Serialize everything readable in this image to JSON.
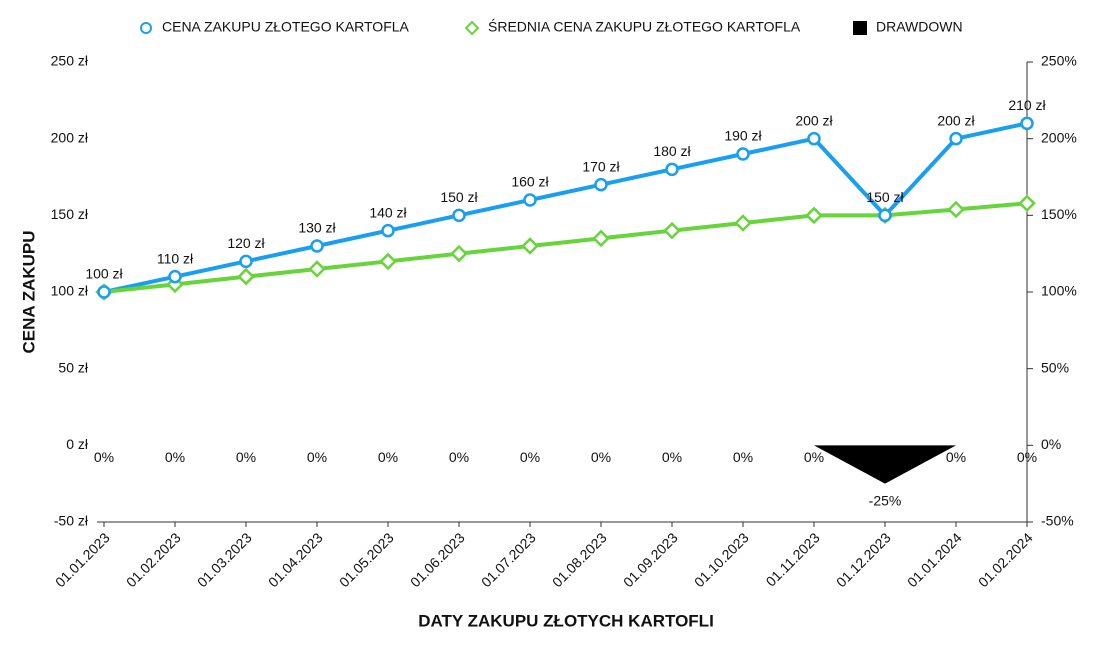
{
  "chart_data": {
    "type": "line",
    "x_label": "DATY ZAKUPU ZŁOTYCH KARTOFLI",
    "y_label": "CENA ZAKUPU",
    "categories": [
      "01.01.2023",
      "01.02.2023",
      "01.03.2023",
      "01.04.2023",
      "01.05.2023",
      "01.06.2023",
      "01.07.2023",
      "01.08.2023",
      "01.09.2023",
      "01.10.2023",
      "01.11.2023",
      "01.12.2023",
      "01.01.2024",
      "01.02.2024"
    ],
    "series": [
      {
        "name": "CENA ZAKUPU ZŁOTEGO KARTOFLA",
        "color": "#1a9ff0",
        "marker": "circle",
        "values": [
          100,
          110,
          120,
          130,
          140,
          150,
          160,
          170,
          180,
          190,
          200,
          150,
          200,
          210
        ],
        "value_labels": [
          "100 zł",
          "110 zł",
          "120 zł",
          "130 zł",
          "140 zł",
          "150 zł",
          "160 zł",
          "170 zł",
          "180 zł",
          "190 zł",
          "200 zł",
          "150 zł",
          "200 zł",
          "210 zł"
        ]
      },
      {
        "name": "ŚREDNIA CENA ZAKUPU ZŁOTEGO KARTOFLA",
        "color": "#66d43a",
        "marker": "diamond",
        "values": [
          100,
          105,
          110,
          115,
          120,
          125,
          130,
          135,
          140,
          145,
          150,
          150,
          153.8,
          157.9
        ]
      },
      {
        "name": "DRAWDOWN",
        "color": "#000000",
        "marker": "area",
        "axis": "y2",
        "values": [
          0,
          0,
          0,
          0,
          0,
          0,
          0,
          0,
          0,
          0,
          0,
          -25,
          0,
          0
        ],
        "value_labels": [
          "0%",
          "0%",
          "0%",
          "0%",
          "0%",
          "0%",
          "0%",
          "0%",
          "0%",
          "0%",
          "0%",
          "-25%",
          "0%",
          "0%"
        ]
      }
    ],
    "ylim": [
      -50,
      250
    ],
    "yticks": [
      {
        "value": -50,
        "label": "-50 zł"
      },
      {
        "value": 0,
        "label": "0 zł"
      },
      {
        "value": 50,
        "label": "50 zł"
      },
      {
        "value": 100,
        "label": "100 zł"
      },
      {
        "value": 150,
        "label": "150 zł"
      },
      {
        "value": 200,
        "label": "200 zł"
      },
      {
        "value": 250,
        "label": "250 zł"
      }
    ],
    "y2lim": [
      -50,
      250
    ],
    "y2ticks": [
      {
        "value": -50,
        "label": "-50%"
      },
      {
        "value": 0,
        "label": "0%"
      },
      {
        "value": 50,
        "label": "50%"
      },
      {
        "value": 100,
        "label": "100%"
      },
      {
        "value": 150,
        "label": "150%"
      },
      {
        "value": 200,
        "label": "200%"
      },
      {
        "value": 250,
        "label": "250%"
      }
    ],
    "legend": "top"
  }
}
